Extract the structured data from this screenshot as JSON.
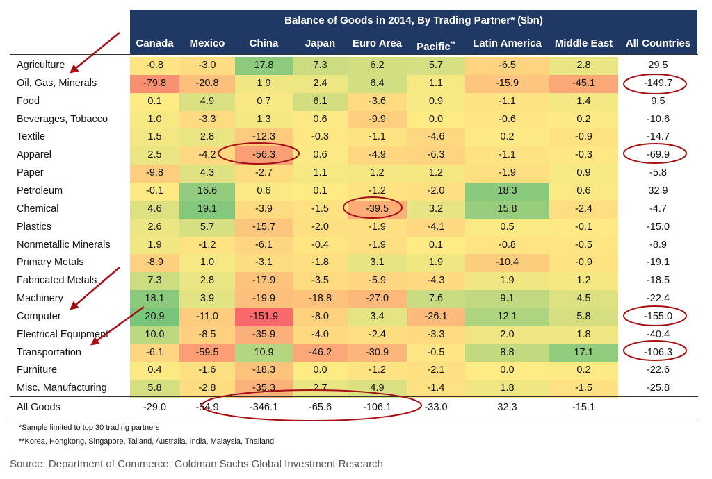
{
  "chart_data": {
    "type": "heatmap",
    "title": "Balance of Goods in 2014, By Trading Partner* ($bn)",
    "columns": [
      "Canada",
      "Mexico",
      "China",
      "Japan",
      "Euro Area",
      "Pacific",
      "Latin America",
      "Middle East"
    ],
    "pacific_mark": "**",
    "all_countries_label": "All Countries",
    "rows": [
      {
        "label": "Agriculture",
        "values": [
          -0.8,
          -3.0,
          17.8,
          7.3,
          6.2,
          5.7,
          -6.5,
          2.8
        ],
        "all": 29.5
      },
      {
        "label": "Oil, Gas, Minerals",
        "values": [
          -79.8,
          -20.8,
          1.9,
          2.4,
          6.4,
          1.1,
          -15.9,
          -45.1
        ],
        "all": -149.7
      },
      {
        "label": "Food",
        "values": [
          0.1,
          4.9,
          0.7,
          6.1,
          -3.6,
          0.9,
          -1.1,
          1.4
        ],
        "all": 9.5
      },
      {
        "label": "Beverages, Tobacco",
        "values": [
          1.0,
          -3.3,
          1.3,
          0.6,
          -9.9,
          0.0,
          -0.6,
          0.2
        ],
        "all": -10.6
      },
      {
        "label": "Textile",
        "values": [
          1.5,
          2.8,
          -12.3,
          -0.3,
          -1.1,
          -4.6,
          0.2,
          -0.9
        ],
        "all": -14.7
      },
      {
        "label": "Apparel",
        "values": [
          2.5,
          -4.2,
          -56.3,
          0.6,
          -4.9,
          -6.3,
          -1.1,
          -0.3
        ],
        "all": -69.9
      },
      {
        "label": "Paper",
        "values": [
          -9.8,
          4.3,
          -2.7,
          1.1,
          1.2,
          1.2,
          -1.9,
          0.9
        ],
        "all": -5.8
      },
      {
        "label": "Petroleum",
        "values": [
          -0.1,
          16.6,
          0.6,
          0.1,
          -1.2,
          -2.0,
          18.3,
          0.6
        ],
        "all": 32.9
      },
      {
        "label": "Chemical",
        "values": [
          4.6,
          19.1,
          -3.9,
          -1.5,
          -39.5,
          3.2,
          15.8,
          -2.4
        ],
        "all": -4.7
      },
      {
        "label": "Plastics",
        "values": [
          2.6,
          5.7,
          -15.7,
          -2.0,
          -1.9,
          -4.1,
          0.5,
          -0.1
        ],
        "all": -15.0
      },
      {
        "label": "Nonmetallic Minerals",
        "values": [
          1.9,
          -1.2,
          -6.1,
          -0.4,
          -1.9,
          0.1,
          -0.8,
          -0.5
        ],
        "all": -8.9
      },
      {
        "label": "Primary Metals",
        "values": [
          -8.9,
          1.0,
          -3.1,
          -1.8,
          3.1,
          1.9,
          -10.4,
          -0.9
        ],
        "all": -19.1
      },
      {
        "label": "Fabricated Metals",
        "values": [
          7.3,
          2.8,
          -17.9,
          -3.5,
          -5.9,
          -4.3,
          1.9,
          1.2
        ],
        "all": -18.5
      },
      {
        "label": "Machinery",
        "values": [
          18.1,
          3.9,
          -19.9,
          -18.8,
          -27.0,
          7.6,
          9.1,
          4.5
        ],
        "all": -22.4
      },
      {
        "label": "Computer",
        "values": [
          20.9,
          -11.0,
          -151.9,
          -8.0,
          3.4,
          -26.1,
          12.1,
          5.8
        ],
        "all": -155.0
      },
      {
        "label": "Electrical Equipment",
        "values": [
          10.0,
          -8.5,
          -35.9,
          -4.0,
          -2.4,
          -3.3,
          2.0,
          1.8
        ],
        "all": -40.4
      },
      {
        "label": "Transportation",
        "values": [
          -6.1,
          -59.5,
          10.9,
          -46.2,
          -30.9,
          -0.5,
          8.8,
          17.1
        ],
        "all": -106.3
      },
      {
        "label": "Furniture",
        "values": [
          0.4,
          -1.6,
          -18.3,
          0.0,
          -1.2,
          -2.1,
          0.0,
          0.2
        ],
        "all": -22.6
      },
      {
        "label": "Misc. Manufacturing",
        "values": [
          5.8,
          -2.8,
          -35.3,
          2.7,
          4.9,
          -1.4,
          1.8,
          -1.5
        ],
        "all": -25.8
      }
    ],
    "all_goods": {
      "label": "All Goods",
      "values": [
        -29.0,
        -54.9,
        -346.1,
        -65.6,
        -106.1,
        -33.0,
        32.3,
        -15.1
      ]
    },
    "colors": {
      "header": "#1f3864",
      "negative_strong": "#f8696b",
      "neutral": "#ffeb84",
      "positive_strong": "#63be7b",
      "annotation": "#a50f15"
    },
    "annotations": "red ellipses highlight Apparel/China, Chemical/Euro Area, All Goods Mexico–Euro Area, and All Countries values for Oil Gas Minerals, Apparel, Computer, Transportation; red arrows point to Agriculture, Oil Gas Minerals, Machinery, Computer, Transportation"
  },
  "notes": {
    "note1": "*Sample limited to top 30 trading partners",
    "note2": "**Korea, Hongkong, Singapore, Tailand, Australia, India, Malaysia, Thailand"
  },
  "source": "Source: Department of Commerce, Goldman Sachs Global Investment Research"
}
